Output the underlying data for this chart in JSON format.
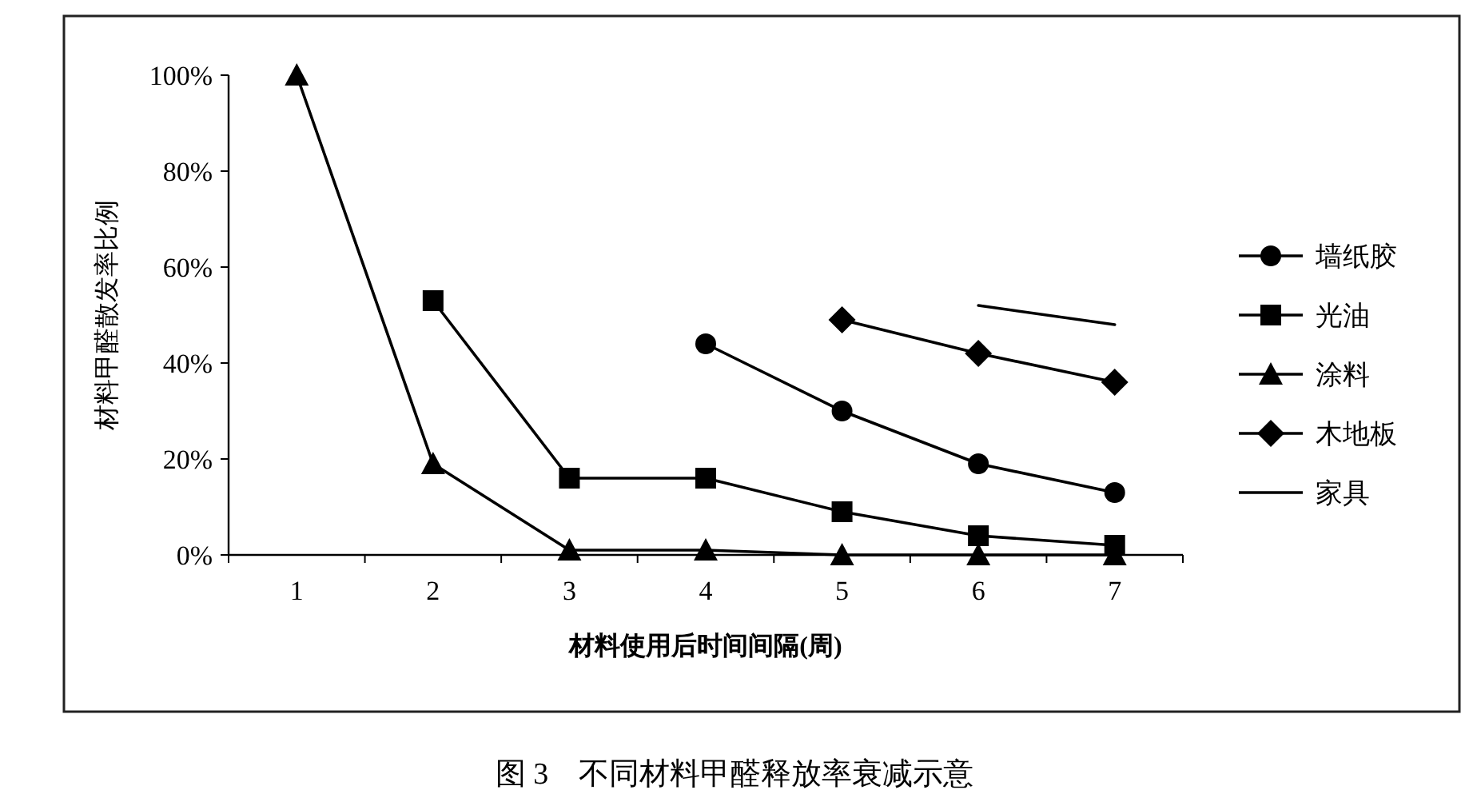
{
  "chart_data": {
    "type": "line",
    "xlabel": "材料使用后时间间隔(周)",
    "ylabel": "材料甲醛散发率比例",
    "annotations": [
      "图 3　不同材料甲醛释放率衰减示意"
    ],
    "categories": [
      "1",
      "2",
      "3",
      "4",
      "5",
      "6",
      "7"
    ],
    "ylim": [
      0,
      100
    ],
    "yticks": [
      {
        "value": 0,
        "label": "0%"
      },
      {
        "value": 20,
        "label": "20%"
      },
      {
        "value": 40,
        "label": "40%"
      },
      {
        "value": 60,
        "label": "60%"
      },
      {
        "value": 80,
        "label": "80%"
      },
      {
        "value": 100,
        "label": "100%"
      }
    ],
    "grid": false,
    "legend": "right",
    "line_style": "solid",
    "series": [
      {
        "name": "墙纸胶",
        "color": "#000000",
        "marker": "circle",
        "values": [
          null,
          null,
          null,
          44,
          30,
          19,
          13
        ]
      },
      {
        "name": "光油",
        "color": "#000000",
        "marker": "square",
        "values": [
          null,
          53,
          16,
          16,
          9,
          4,
          2
        ]
      },
      {
        "name": "涂料",
        "color": "#000000",
        "marker": "triangle",
        "values": [
          100,
          19,
          1,
          1,
          0,
          0,
          0
        ]
      },
      {
        "name": "木地板",
        "color": "#000000",
        "marker": "diamond",
        "values": [
          null,
          null,
          null,
          null,
          49,
          42,
          36
        ]
      },
      {
        "name": "家具",
        "color": "#000000",
        "marker": "none",
        "values": [
          null,
          null,
          null,
          null,
          null,
          52,
          48
        ]
      }
    ]
  }
}
